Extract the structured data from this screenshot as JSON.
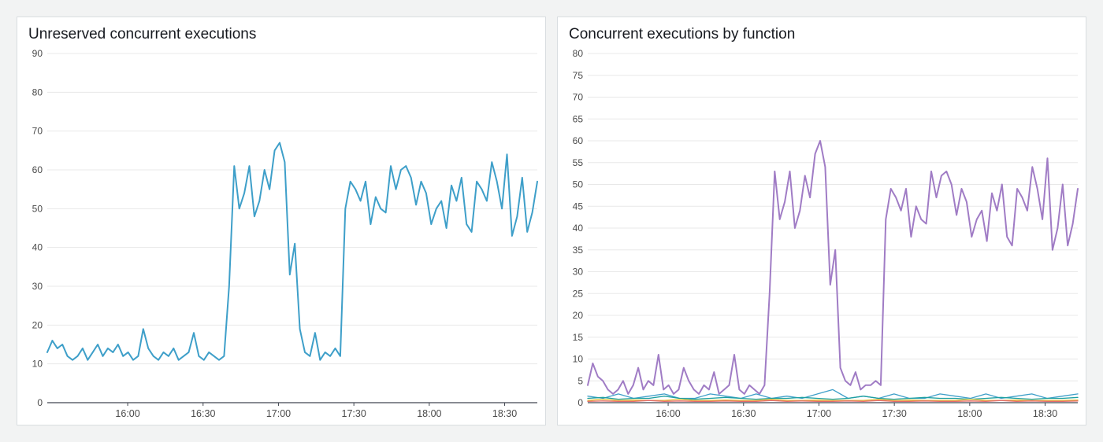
{
  "chart_data": [
    {
      "type": "line",
      "title": "Unreserved concurrent executions",
      "grid": "horizontal",
      "legend": "none",
      "x_axis": {
        "domain_minutes": [
          928,
          1123
        ],
        "ticks": [
          {
            "minute": 960,
            "label": "16:00"
          },
          {
            "minute": 990,
            "label": "16:30"
          },
          {
            "minute": 1020,
            "label": "17:00"
          },
          {
            "minute": 1050,
            "label": "17:30"
          },
          {
            "minute": 1080,
            "label": "18:00"
          },
          {
            "minute": 1110,
            "label": "18:30"
          }
        ]
      },
      "y_axis": {
        "range": [
          0,
          90
        ],
        "ticks": [
          0,
          10,
          20,
          30,
          40,
          50,
          60,
          70,
          80,
          90
        ]
      },
      "series": [
        {
          "name": "unreserved-concurrent-executions",
          "color": "#3e9fc9",
          "values": [
            13,
            16,
            14,
            15,
            12,
            11,
            12,
            14,
            11,
            13,
            15,
            12,
            14,
            13,
            15,
            12,
            13,
            11,
            12,
            19,
            14,
            12,
            11,
            13,
            12,
            14,
            11,
            12,
            13,
            18,
            12,
            11,
            13,
            12,
            11,
            12,
            30,
            61,
            50,
            54,
            61,
            48,
            52,
            60,
            55,
            65,
            67,
            62,
            33,
            41,
            19,
            13,
            12,
            18,
            11,
            13,
            12,
            14,
            12,
            50,
            57,
            55,
            52,
            57,
            46,
            53,
            50,
            49,
            61,
            55,
            60,
            61,
            58,
            51,
            57,
            54,
            46,
            50,
            52,
            45,
            56,
            52,
            58,
            46,
            44,
            57,
            55,
            52,
            62,
            57,
            50,
            64,
            43,
            48,
            58,
            44,
            49,
            57
          ]
        }
      ]
    },
    {
      "type": "line",
      "title": "Concurrent executions by function",
      "grid": "horizontal",
      "legend": "none",
      "x_axis": {
        "domain_minutes": [
          928,
          1123
        ],
        "ticks": [
          {
            "minute": 960,
            "label": "16:00"
          },
          {
            "minute": 990,
            "label": "16:30"
          },
          {
            "minute": 1020,
            "label": "17:00"
          },
          {
            "minute": 1050,
            "label": "17:30"
          },
          {
            "minute": 1080,
            "label": "18:00"
          },
          {
            "minute": 1110,
            "label": "18:30"
          }
        ]
      },
      "y_axis": {
        "range": [
          0,
          80
        ],
        "ticks": [
          0,
          5,
          10,
          15,
          20,
          25,
          30,
          35,
          40,
          45,
          50,
          55,
          60,
          65,
          70,
          75,
          80
        ]
      },
      "series": [
        {
          "name": "function-purple",
          "color": "#a07cc5",
          "values": [
            4,
            9,
            6,
            5,
            3,
            2,
            3,
            5,
            2,
            4,
            8,
            3,
            5,
            4,
            11,
            3,
            4,
            2,
            3,
            8,
            5,
            3,
            2,
            4,
            3,
            7,
            2,
            3,
            4,
            11,
            3,
            2,
            4,
            3,
            2,
            4,
            25,
            53,
            42,
            46,
            53,
            40,
            44,
            52,
            47,
            57,
            60,
            54,
            27,
            35,
            8,
            5,
            4,
            7,
            3,
            4,
            4,
            5,
            4,
            42,
            49,
            47,
            44,
            49,
            38,
            45,
            42,
            41,
            53,
            47,
            52,
            53,
            50,
            43,
            49,
            46,
            38,
            42,
            44,
            37,
            48,
            44,
            50,
            38,
            36,
            49,
            47,
            44,
            54,
            49,
            42,
            56,
            35,
            40,
            50,
            36,
            41,
            49
          ]
        },
        {
          "name": "function-blue",
          "color": "#3e9fc9",
          "values": [
            1.5,
            1,
            2,
            1,
            1.5,
            2,
            1,
            1,
            2,
            1.5,
            1,
            2,
            1,
            1.5,
            1,
            2,
            3,
            1,
            1.5,
            1,
            2,
            1,
            1,
            2,
            1.5,
            1,
            2,
            1,
            1.5,
            2,
            1,
            1.5,
            2
          ]
        },
        {
          "name": "function-teal",
          "color": "#1d9f9f",
          "values": [
            1,
            1.2,
            0.8,
            1,
            1,
            1.5,
            1,
            0.8,
            1,
            1.2,
            1,
            0.8,
            1,
            1,
            1.2,
            1,
            0.8,
            1,
            1.5,
            1,
            0.8,
            1,
            1.2,
            1,
            1,
            0.8,
            1,
            1.2,
            1,
            0.8,
            1,
            1,
            1.2
          ]
        },
        {
          "name": "function-yellow",
          "color": "#e6c23a",
          "values": [
            0.5,
            0.8,
            0.5,
            0.6,
            0.5,
            0.5,
            0.8,
            0.5,
            0.5,
            0.6,
            0.5,
            0.5,
            0.8,
            0.5,
            0.5,
            0.6,
            0.5,
            0.5,
            0.5,
            0.8,
            0.5,
            0.6,
            0.5,
            0.5,
            0.5,
            0.8,
            0.5,
            0.5,
            0.6,
            0.5,
            0.5,
            0.5,
            0.6
          ]
        },
        {
          "name": "function-red",
          "color": "#e36a6a",
          "values": [
            0.3,
            0.4,
            0.3,
            0.3,
            0.5,
            0.3,
            0.4,
            0.3,
            0.3,
            0.4,
            0.3,
            0.3,
            0.5,
            0.3,
            0.4,
            0.3,
            0.3,
            0.4,
            0.3,
            0.5,
            0.3,
            0.3,
            0.4,
            0.3,
            0.3,
            0.4,
            0.3,
            0.5,
            0.3,
            0.4,
            0.3,
            0.3,
            0.4
          ]
        }
      ]
    }
  ],
  "style": {
    "grid_color": "#e8e8e8",
    "axis_color": "#424650",
    "tick_label_color": "#4a4a4a"
  }
}
